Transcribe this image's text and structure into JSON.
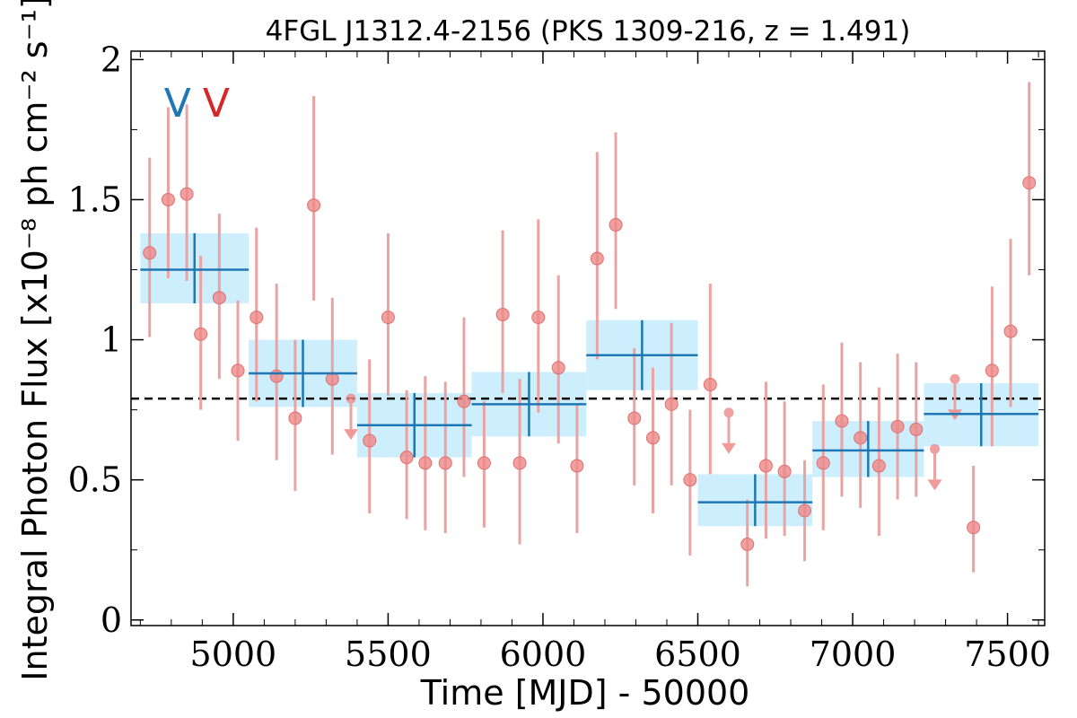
{
  "chart_data": {
    "type": "scatter",
    "title": "4FGL J1312.4-2156 (PKS 1309-216, z = 1.491)",
    "xlabel": "Time [MJD] - 50000",
    "ylabel": "Integral Photon Flux [x10⁻⁸ ph cm⁻² s⁻¹]",
    "xlim": [
      4670,
      7620
    ],
    "ylim": [
      -0.02,
      2.03
    ],
    "xticks": [
      5000,
      5500,
      6000,
      6500,
      7000,
      7500
    ],
    "xtick_labels": [
      "5000",
      "5500",
      "6000",
      "6500",
      "7000",
      "7500"
    ],
    "yticks": [
      0,
      0.5,
      1,
      1.5,
      2
    ],
    "ytick_labels": [
      "0",
      "0.5",
      "1",
      "1.5",
      "2"
    ],
    "mean_flux": 0.79,
    "markers": [
      {
        "label": "V",
        "x": 4820,
        "color": "#1f77b4"
      },
      {
        "label": "V",
        "x": 4945,
        "color": "#d62728"
      }
    ],
    "binned": [
      {
        "x_start": 4700,
        "x_end": 5050,
        "y": 1.25,
        "y_low": 1.13,
        "y_high": 1.38
      },
      {
        "x_start": 5050,
        "x_end": 5400,
        "y": 0.88,
        "y_low": 0.76,
        "y_high": 1.0
      },
      {
        "x_start": 5400,
        "x_end": 5770,
        "y": 0.695,
        "y_low": 0.58,
        "y_high": 0.81
      },
      {
        "x_start": 5770,
        "x_end": 6140,
        "y": 0.77,
        "y_low": 0.655,
        "y_high": 0.885
      },
      {
        "x_start": 6140,
        "x_end": 6500,
        "y": 0.945,
        "y_low": 0.82,
        "y_high": 1.07
      },
      {
        "x_start": 6500,
        "x_end": 6870,
        "y": 0.42,
        "y_low": 0.335,
        "y_high": 0.52
      },
      {
        "x_start": 6870,
        "x_end": 7230,
        "y": 0.605,
        "y_low": 0.51,
        "y_high": 0.71
      },
      {
        "x_start": 7230,
        "x_end": 7600,
        "y": 0.735,
        "y_low": 0.62,
        "y_high": 0.845
      }
    ],
    "points": [
      {
        "x": 4730,
        "y": 1.31,
        "lo": 1.01,
        "hi": 1.65
      },
      {
        "x": 4790,
        "y": 1.5,
        "lo": 1.22,
        "hi": 1.83
      },
      {
        "x": 4850,
        "y": 1.52,
        "lo": 1.21,
        "hi": 1.84
      },
      {
        "x": 4895,
        "y": 1.02,
        "lo": 0.75,
        "hi": 1.3
      },
      {
        "x": 4955,
        "y": 1.15,
        "lo": 0.86,
        "hi": 1.45
      },
      {
        "x": 5015,
        "y": 0.89,
        "lo": 0.64,
        "hi": 1.14
      },
      {
        "x": 5075,
        "y": 1.08,
        "lo": 0.78,
        "hi": 1.4
      },
      {
        "x": 5140,
        "y": 0.87,
        "lo": 0.57,
        "hi": 1.2
      },
      {
        "x": 5200,
        "y": 0.72,
        "lo": 0.46,
        "hi": 1.0
      },
      {
        "x": 5260,
        "y": 1.48,
        "lo": 1.14,
        "hi": 1.87
      },
      {
        "x": 5320,
        "y": 0.86,
        "lo": 0.59,
        "hi": 1.15
      },
      {
        "x": 5380,
        "y": 0.79,
        "upper_limit": true
      },
      {
        "x": 5440,
        "y": 0.64,
        "lo": 0.38,
        "hi": 0.93
      },
      {
        "x": 5500,
        "y": 1.08,
        "lo": 0.8,
        "hi": 1.38
      },
      {
        "x": 5560,
        "y": 0.58,
        "lo": 0.36,
        "hi": 0.82
      },
      {
        "x": 5620,
        "y": 0.56,
        "lo": 0.32,
        "hi": 0.87
      },
      {
        "x": 5685,
        "y": 0.56,
        "lo": 0.31,
        "hi": 0.85
      },
      {
        "x": 5745,
        "y": 0.78,
        "lo": 0.51,
        "hi": 1.08
      },
      {
        "x": 5810,
        "y": 0.56,
        "lo": 0.33,
        "hi": 0.78
      },
      {
        "x": 5870,
        "y": 1.09,
        "lo": 0.81,
        "hi": 1.39
      },
      {
        "x": 5925,
        "y": 0.56,
        "lo": 0.27,
        "hi": 0.86
      },
      {
        "x": 5985,
        "y": 1.08,
        "lo": 0.74,
        "hi": 1.43
      },
      {
        "x": 6050,
        "y": 0.9,
        "lo": 0.63,
        "hi": 1.23
      },
      {
        "x": 6110,
        "y": 0.55,
        "lo": 0.31,
        "hi": 0.77
      },
      {
        "x": 6175,
        "y": 1.29,
        "lo": 0.93,
        "hi": 1.67
      },
      {
        "x": 6235,
        "y": 1.41,
        "lo": 1.11,
        "hi": 1.74
      },
      {
        "x": 6295,
        "y": 0.72,
        "lo": 0.48,
        "hi": 0.97
      },
      {
        "x": 6355,
        "y": 0.65,
        "lo": 0.38,
        "hi": 0.9
      },
      {
        "x": 6415,
        "y": 0.77,
        "lo": 0.48,
        "hi": 1.06
      },
      {
        "x": 6475,
        "y": 0.5,
        "lo": 0.23,
        "hi": 0.75
      },
      {
        "x": 6540,
        "y": 0.84,
        "lo": 0.52,
        "hi": 1.2
      },
      {
        "x": 6600,
        "y": 0.74,
        "upper_limit": true
      },
      {
        "x": 6660,
        "y": 0.27,
        "lo": 0.12,
        "hi": 0.43
      },
      {
        "x": 6720,
        "y": 0.55,
        "lo": 0.29,
        "hi": 0.85
      },
      {
        "x": 6780,
        "y": 0.53,
        "lo": 0.3,
        "hi": 0.78
      },
      {
        "x": 6845,
        "y": 0.39,
        "lo": 0.21,
        "hi": 0.57
      },
      {
        "x": 6905,
        "y": 0.56,
        "lo": 0.32,
        "hi": 0.84
      },
      {
        "x": 6965,
        "y": 0.71,
        "lo": 0.44,
        "hi": 0.99
      },
      {
        "x": 7025,
        "y": 0.65,
        "lo": 0.4,
        "hi": 0.92
      },
      {
        "x": 7085,
        "y": 0.55,
        "lo": 0.3,
        "hi": 0.83
      },
      {
        "x": 7145,
        "y": 0.69,
        "lo": 0.43,
        "hi": 0.95
      },
      {
        "x": 7205,
        "y": 0.68,
        "lo": 0.44,
        "hi": 0.92
      },
      {
        "x": 7265,
        "y": 0.61,
        "upper_limit": true
      },
      {
        "x": 7330,
        "y": 0.86,
        "upper_limit": true
      },
      {
        "x": 7390,
        "y": 0.33,
        "lo": 0.17,
        "hi": 0.55
      },
      {
        "x": 7450,
        "y": 0.89,
        "lo": 0.62,
        "hi": 1.19
      },
      {
        "x": 7510,
        "y": 1.03,
        "lo": 0.76,
        "hi": 1.36
      },
      {
        "x": 7570,
        "y": 1.56,
        "lo": 1.23,
        "hi": 1.92
      }
    ],
    "colors": {
      "points": "#ee8888",
      "errorbars": "#e9a3a3",
      "binned_line": "#1f77b4",
      "binned_band": "#cdeefd",
      "mean_line": "#000000"
    }
  }
}
